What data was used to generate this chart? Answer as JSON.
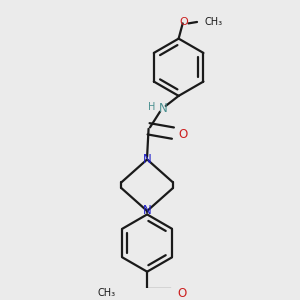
{
  "bg_color": "#ebebeb",
  "bond_color": "#1a1a1a",
  "N_color": "#2020cc",
  "O_color": "#cc2020",
  "H_color": "#4a9090",
  "line_width": 1.6,
  "dbo": 0.025,
  "figsize": [
    3.0,
    3.0
  ],
  "dpi": 100,
  "xlim": [
    0.1,
    0.9
  ],
  "ylim": [
    0.02,
    1.02
  ]
}
